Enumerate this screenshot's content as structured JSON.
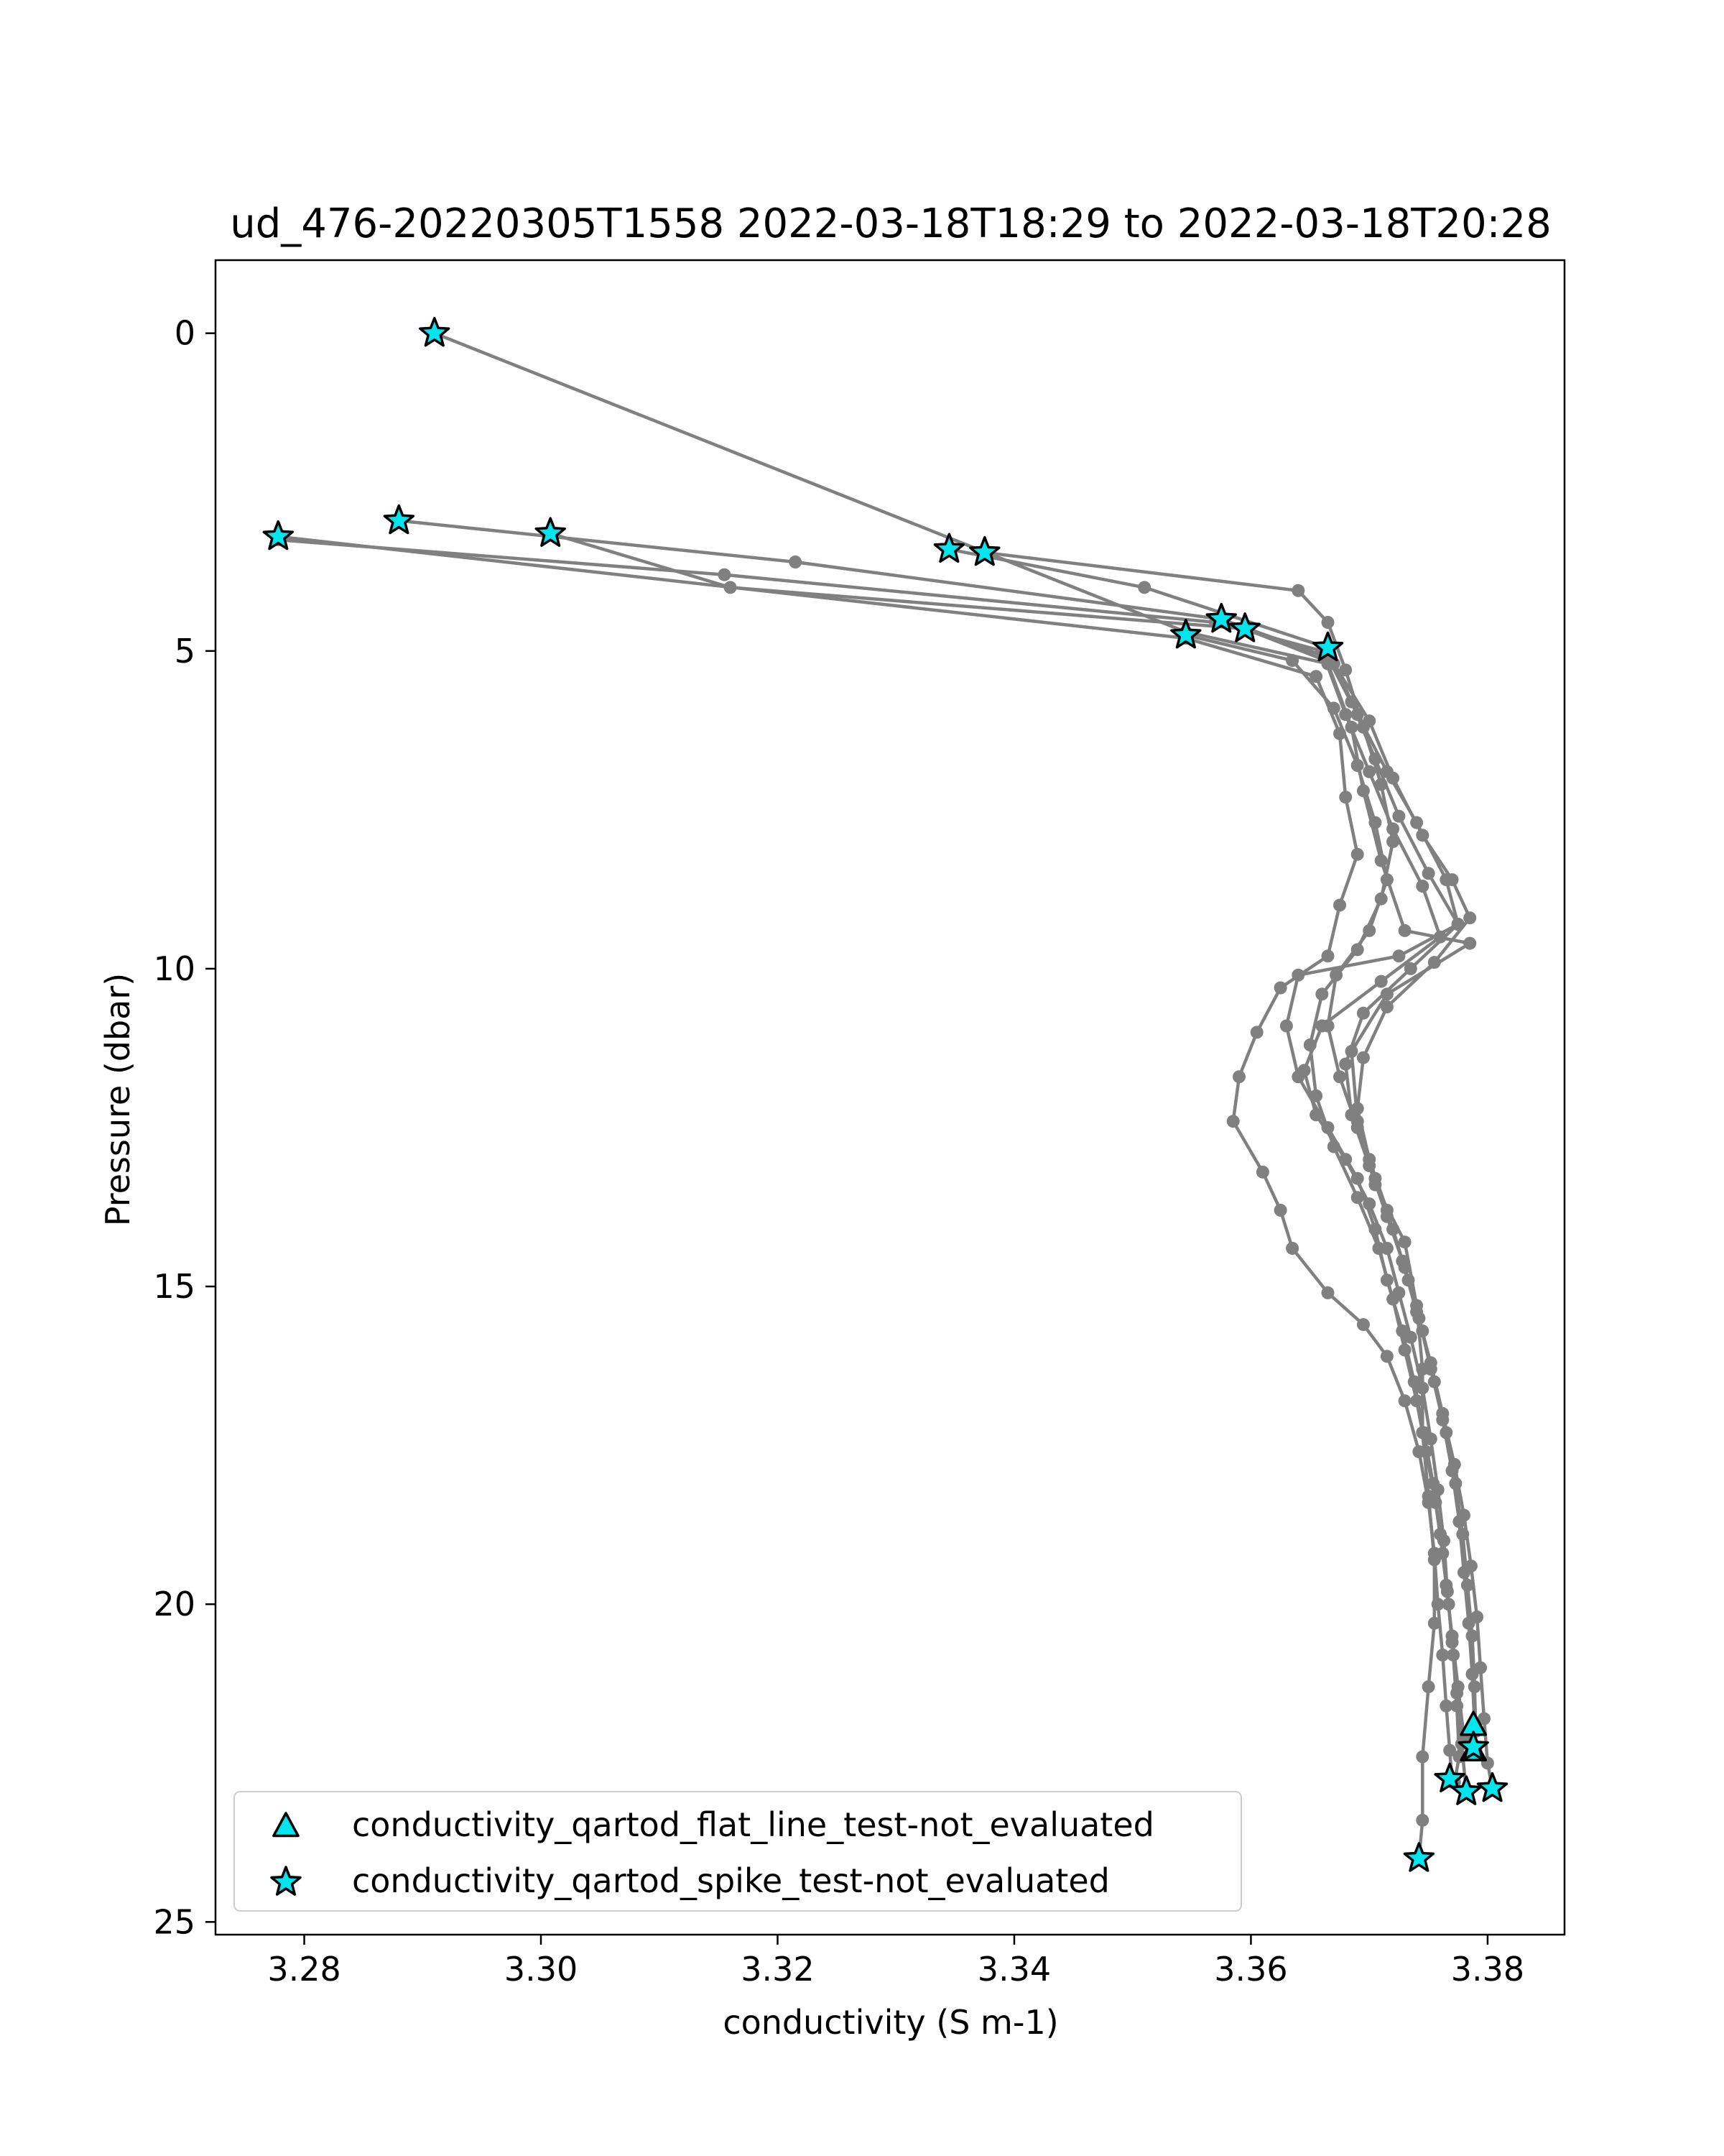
{
  "chart_data": {
    "type": "line",
    "title": "ud_476-20220305T1558 2022-03-18T18:29 to 2022-03-18T20:28",
    "xlabel": "conductivity (S m-1)",
    "ylabel": "Pressure (dbar)",
    "xlim": [
      3.2725,
      3.3865
    ],
    "ylim": [
      25.2,
      -1.15
    ],
    "y_inverted": true,
    "xticks": [
      3.28,
      3.3,
      3.32,
      3.34,
      3.36,
      3.38
    ],
    "xtick_labels": [
      "3.28",
      "3.30",
      "3.32",
      "3.34",
      "3.36",
      "3.38"
    ],
    "yticks": [
      0,
      5,
      10,
      15,
      20,
      25
    ],
    "ytick_labels": [
      "0",
      "5",
      "10",
      "15",
      "20",
      "25"
    ],
    "grid": false,
    "legend_position": "lower-left",
    "colors": {
      "profile_line": "#808080",
      "flag_fill": "#00e5ee",
      "flag_edge": "#000000"
    },
    "series": [
      {
        "values": [
          [
            3.291,
            0.0
          ],
          [
            3.3545,
            4.7
          ],
          [
            3.3665,
            5.2
          ],
          [
            3.3685,
            6.2
          ],
          [
            3.3695,
            7.2
          ],
          [
            3.371,
            8.3
          ],
          [
            3.373,
            9.4
          ],
          [
            3.3785,
            9.6
          ],
          [
            3.3715,
            10.4
          ],
          [
            3.3685,
            11.3
          ],
          [
            3.369,
            12.4
          ],
          [
            3.3705,
            13.4
          ],
          [
            3.373,
            14.3
          ],
          [
            3.374,
            15.3
          ],
          [
            3.3745,
            16.3
          ],
          [
            3.3745,
            17.3
          ],
          [
            3.375,
            18.3
          ],
          [
            3.3755,
            19.3
          ],
          [
            3.3755,
            20.3
          ],
          [
            3.375,
            21.3
          ],
          [
            3.3745,
            22.4
          ],
          [
            3.3745,
            23.4
          ],
          [
            3.3742,
            24.0
          ]
        ]
      },
      {
        "values": [
          [
            3.2778,
            3.2
          ],
          [
            3.3545,
            4.8
          ],
          [
            3.3655,
            5.4
          ],
          [
            3.3675,
            6.3
          ],
          [
            3.368,
            7.3
          ],
          [
            3.369,
            8.2
          ],
          [
            3.3675,
            9.0
          ],
          [
            3.3665,
            9.8
          ],
          [
            3.3625,
            10.3
          ],
          [
            3.3605,
            11.0
          ],
          [
            3.359,
            11.7
          ],
          [
            3.3585,
            12.4
          ],
          [
            3.361,
            13.2
          ],
          [
            3.3625,
            13.8
          ],
          [
            3.3635,
            14.4
          ],
          [
            3.3665,
            15.1
          ],
          [
            3.3695,
            15.6
          ],
          [
            3.3715,
            16.1
          ],
          [
            3.373,
            16.8
          ],
          [
            3.3742,
            17.6
          ],
          [
            3.375,
            18.4
          ],
          [
            3.3755,
            19.2
          ],
          [
            3.3758,
            20.0
          ],
          [
            3.3762,
            20.8
          ],
          [
            3.3765,
            21.6
          ],
          [
            3.3768,
            22.3
          ],
          [
            3.377,
            22.8
          ]
        ]
      },
      {
        "values": [
          [
            3.2778,
            3.25
          ],
          [
            3.3155,
            3.8
          ],
          [
            3.357,
            4.55
          ],
          [
            3.366,
            5.0
          ],
          [
            3.368,
            6.0
          ],
          [
            3.37,
            6.9
          ],
          [
            3.372,
            7.8
          ],
          [
            3.3745,
            8.7
          ],
          [
            3.376,
            9.5
          ],
          [
            3.371,
            10.2
          ],
          [
            3.366,
            10.9
          ],
          [
            3.3645,
            11.6
          ],
          [
            3.3655,
            12.3
          ],
          [
            3.368,
            13.0
          ],
          [
            3.37,
            13.7
          ],
          [
            3.3715,
            14.4
          ],
          [
            3.3725,
            15.1
          ],
          [
            3.3735,
            15.8
          ],
          [
            3.3745,
            16.6
          ],
          [
            3.3752,
            17.4
          ],
          [
            3.3758,
            18.2
          ],
          [
            3.3763,
            19.0
          ],
          [
            3.3766,
            19.8
          ],
          [
            3.377,
            20.6
          ],
          [
            3.3774,
            21.4
          ],
          [
            3.3778,
            22.2
          ],
          [
            3.3782,
            22.95
          ]
        ]
      },
      {
        "values": [
          [
            3.288,
            2.95
          ],
          [
            3.3215,
            3.6
          ],
          [
            3.3575,
            4.5
          ],
          [
            3.3665,
            5.1
          ],
          [
            3.369,
            6.0
          ],
          [
            3.3715,
            6.9
          ],
          [
            3.374,
            7.7
          ],
          [
            3.3765,
            8.6
          ],
          [
            3.3775,
            9.3
          ],
          [
            3.3735,
            10.0
          ],
          [
            3.3695,
            10.7
          ],
          [
            3.368,
            11.5
          ],
          [
            3.3685,
            12.3
          ],
          [
            3.37,
            13.1
          ],
          [
            3.3715,
            13.9
          ],
          [
            3.373,
            14.7
          ],
          [
            3.3742,
            15.5
          ],
          [
            3.3752,
            16.3
          ],
          [
            3.3762,
            17.1
          ],
          [
            3.377,
            17.9
          ],
          [
            3.3776,
            18.7
          ],
          [
            3.378,
            19.5
          ],
          [
            3.3784,
            20.3
          ],
          [
            3.3787,
            21.1
          ],
          [
            3.3789,
            21.9
          ],
          [
            3.379,
            22.3
          ]
        ]
      },
      {
        "values": [
          [
            3.3008,
            3.15
          ],
          [
            3.316,
            4.0
          ],
          [
            3.3595,
            4.65
          ],
          [
            3.367,
            5.2
          ],
          [
            3.37,
            6.1
          ],
          [
            3.372,
            7.0
          ],
          [
            3.3745,
            7.9
          ],
          [
            3.377,
            8.6
          ],
          [
            3.3785,
            9.2
          ],
          [
            3.3755,
            9.9
          ],
          [
            3.3715,
            10.6
          ],
          [
            3.3695,
            11.4
          ],
          [
            3.369,
            12.2
          ],
          [
            3.37,
            13.0
          ],
          [
            3.3715,
            13.8
          ],
          [
            3.3728,
            14.6
          ],
          [
            3.374,
            15.4
          ],
          [
            3.3752,
            16.2
          ],
          [
            3.3762,
            17.0
          ],
          [
            3.3772,
            17.8
          ],
          [
            3.378,
            18.6
          ],
          [
            3.3786,
            19.4
          ],
          [
            3.3791,
            20.2
          ],
          [
            3.3794,
            21.0
          ],
          [
            3.3797,
            21.8
          ],
          [
            3.38,
            22.5
          ],
          [
            3.3804,
            22.9
          ]
        ]
      },
      {
        "values": [
          [
            3.3345,
            3.4
          ],
          [
            3.351,
            4.0
          ],
          [
            3.3665,
            4.95
          ],
          [
            3.3685,
            5.8
          ],
          [
            3.3705,
            6.7
          ],
          [
            3.3725,
            7.6
          ],
          [
            3.375,
            8.5
          ],
          [
            3.3775,
            9.3
          ],
          [
            3.3725,
            9.8
          ],
          [
            3.364,
            10.1
          ],
          [
            3.363,
            10.9
          ],
          [
            3.364,
            11.7
          ],
          [
            3.3665,
            12.5
          ],
          [
            3.369,
            13.3
          ],
          [
            3.3705,
            14.1
          ],
          [
            3.3715,
            14.9
          ],
          [
            3.3728,
            15.7
          ],
          [
            3.3738,
            16.5
          ],
          [
            3.3746,
            17.3
          ],
          [
            3.3754,
            18.1
          ],
          [
            3.376,
            18.9
          ],
          [
            3.3765,
            19.7
          ],
          [
            3.377,
            20.5
          ],
          [
            3.3775,
            21.3
          ],
          [
            3.378,
            22.1
          ],
          [
            3.3786,
            22.2
          ]
        ]
      },
      {
        "values": [
          [
            3.3375,
            3.45
          ],
          [
            3.364,
            4.05
          ],
          [
            3.3665,
            4.55
          ],
          [
            3.368,
            5.3
          ],
          [
            3.3695,
            6.2
          ],
          [
            3.371,
            7.1
          ],
          [
            3.372,
            8.0
          ],
          [
            3.371,
            8.9
          ],
          [
            3.369,
            9.7
          ],
          [
            3.366,
            10.4
          ],
          [
            3.365,
            11.2
          ],
          [
            3.3655,
            12.0
          ],
          [
            3.367,
            12.8
          ],
          [
            3.369,
            13.6
          ],
          [
            3.3708,
            14.4
          ],
          [
            3.372,
            15.2
          ],
          [
            3.373,
            16.0
          ],
          [
            3.374,
            16.8
          ],
          [
            3.3748,
            17.6
          ],
          [
            3.3756,
            18.4
          ],
          [
            3.3762,
            19.2
          ],
          [
            3.3767,
            20.0
          ],
          [
            3.3771,
            20.8
          ],
          [
            3.3774,
            21.6
          ],
          [
            3.3776,
            22.4
          ],
          [
            3.3772,
            22.8
          ]
        ]
      },
      {
        "values": [
          [
            3.3545,
            4.75
          ],
          [
            3.3635,
            5.15
          ],
          [
            3.367,
            5.9
          ],
          [
            3.369,
            6.8
          ],
          [
            3.3705,
            7.7
          ],
          [
            3.3715,
            8.6
          ],
          [
            3.37,
            9.4
          ],
          [
            3.3672,
            10.1
          ],
          [
            3.3665,
            10.9
          ],
          [
            3.3675,
            11.7
          ],
          [
            3.369,
            12.5
          ],
          [
            3.3705,
            13.3
          ],
          [
            3.372,
            14.1
          ],
          [
            3.3733,
            14.9
          ],
          [
            3.3745,
            15.7
          ],
          [
            3.3755,
            16.5
          ],
          [
            3.3765,
            17.3
          ],
          [
            3.3773,
            18.1
          ],
          [
            3.3779,
            18.9
          ],
          [
            3.3783,
            19.7
          ],
          [
            3.3787,
            20.5
          ],
          [
            3.3789,
            21.3
          ],
          [
            3.379,
            22.0
          ]
        ]
      }
    ],
    "flags": [
      {
        "name": "conductivity_qartod_flat_line_test-not_evaluated",
        "marker": "triangle",
        "points": [
          [
            3.3788,
            21.9
          ],
          [
            3.3788,
            22.3
          ]
        ]
      },
      {
        "name": "conductivity_qartod_spike_test-not_evaluated",
        "marker": "star",
        "points": [
          [
            3.291,
            0.0
          ],
          [
            3.2778,
            3.2
          ],
          [
            3.288,
            2.95
          ],
          [
            3.3008,
            3.15
          ],
          [
            3.3345,
            3.4
          ],
          [
            3.3375,
            3.45
          ],
          [
            3.3545,
            4.75
          ],
          [
            3.3575,
            4.5
          ],
          [
            3.3595,
            4.65
          ],
          [
            3.3665,
            4.95
          ],
          [
            3.3742,
            24.0
          ],
          [
            3.3768,
            22.75
          ],
          [
            3.3782,
            22.95
          ],
          [
            3.3804,
            22.9
          ],
          [
            3.3788,
            22.25
          ]
        ]
      }
    ]
  }
}
